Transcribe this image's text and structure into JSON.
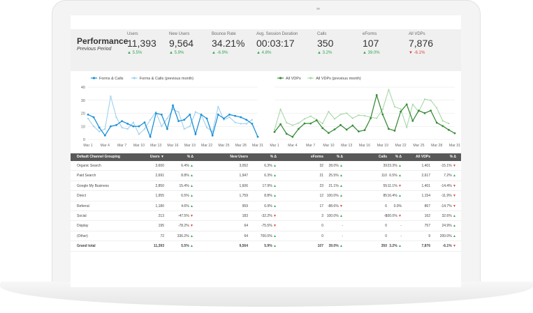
{
  "kpis": {
    "title": "Performance",
    "subtitle": "Previous Period",
    "items": [
      {
        "label": "Users",
        "value": "11,393",
        "delta": "5.5%",
        "dir": "up"
      },
      {
        "label": "New Users",
        "value": "9,564",
        "delta": "5.9%",
        "dir": "up"
      },
      {
        "label": "Bounce Rate",
        "value": "34.21%",
        "delta": "-6.9%",
        "dir": "up"
      },
      {
        "label": "Avg. Session Duration",
        "value": "00:03:17",
        "delta": "4.8%",
        "dir": "up"
      },
      {
        "label": "Calls",
        "value": "350",
        "delta": "3.2%",
        "dir": "up"
      },
      {
        "label": "eForms",
        "value": "107",
        "delta": "39.0%",
        "dir": "up"
      },
      {
        "label": "All VDPs",
        "value": "7,876",
        "delta": "-6.1%",
        "dir": "down"
      }
    ]
  },
  "chart_data": [
    {
      "type": "line",
      "legend_position": "top-left",
      "grid": true,
      "ylim": [
        0,
        40
      ],
      "yticks": [
        "0",
        "10",
        "20",
        "30",
        "40"
      ],
      "x_tick_labels": [
        "Mar 1",
        "Mar 4",
        "Mar 7",
        "Mar 10",
        "Mar 13",
        "Mar 16",
        "Mar 19",
        "Mar 22",
        "Mar 25",
        "Mar 28",
        "Mar 31"
      ],
      "series": [
        {
          "name": "Forms & Calls",
          "color": "#1a8fd6",
          "values": [
            19,
            17,
            9,
            3,
            10,
            11,
            14,
            12,
            10,
            10,
            13,
            2,
            20,
            19,
            8,
            26,
            14,
            15,
            19,
            4,
            19,
            16,
            3,
            19,
            16,
            19,
            18,
            17,
            15,
            12,
            2
          ]
        },
        {
          "name": "Forms & Calls (previous month)",
          "color": "#9fd0f0",
          "values": [
            16,
            10,
            6,
            8,
            33,
            17,
            9,
            8,
            13,
            4,
            8,
            15,
            21,
            10,
            16,
            23,
            21,
            8,
            10,
            21,
            19,
            9,
            6,
            25,
            15,
            17,
            13,
            12,
            12,
            15
          ]
        }
      ]
    },
    {
      "type": "line",
      "legend_position": "top-left",
      "grid": true,
      "x_tick_labels": [
        "Mar 1",
        "Mar 4",
        "Mar 7",
        "Mar 10",
        "Mar 13",
        "Mar 16",
        "Mar 19",
        "Mar 22",
        "Mar 25",
        "Mar 28",
        "Mar 31"
      ],
      "series": [
        {
          "name": "All VDPs",
          "color": "#3b8c3b",
          "values": [
            217,
            247,
            210,
            198,
            229,
            250,
            250,
            262,
            232,
            213,
            227,
            244,
            226,
            242,
            219,
            224,
            270,
            360,
            285,
            229,
            222,
            296,
            324,
            260,
            300,
            290,
            300,
            253,
            240,
            225,
            212
          ]
        },
        {
          "name": "All VDPs (previous month)",
          "color": "#a8d8a8",
          "values": [
            225,
            305,
            253,
            243,
            251,
            268,
            278,
            265,
            250,
            296,
            268,
            285,
            290,
            270,
            282,
            280,
            274,
            270,
            305,
            381,
            315,
            306,
            235,
            324,
            296,
            344,
            340,
            310,
            260,
            250
          ]
        }
      ]
    }
  ],
  "table": {
    "headers": [
      "Default Channel Grouping",
      "Users ▼",
      "% Δ",
      "New Users",
      "% Δ",
      "eForms",
      "% Δ",
      "Calls",
      "% Δ",
      "All VDPs",
      "% Δ"
    ],
    "rows": [
      {
        "cells": [
          "Organic Search",
          "3,600",
          "6.4%",
          "3,052",
          "6.3%",
          "32",
          "28.0%",
          "39",
          "23.3%",
          "1,401",
          "-15.1%"
        ],
        "dirs": [
          "",
          "",
          "up",
          "",
          "up",
          "",
          "up",
          "",
          "up",
          "",
          "down"
        ]
      },
      {
        "cells": [
          "Paid Search",
          "2,691",
          "8.8%",
          "1,947",
          "6.3%",
          "21",
          "25.5%",
          "110",
          "6.5%",
          "2,617",
          "7.2%"
        ],
        "dirs": [
          "",
          "",
          "up",
          "",
          "up",
          "",
          "up",
          "",
          "up",
          "",
          "up"
        ]
      },
      {
        "cells": [
          "Google My Business",
          "2,850",
          "15.4%",
          "1,606",
          "17.9%",
          "23",
          "21.1%",
          "55",
          "-11.1%",
          "1,401",
          "-14.4%"
        ],
        "dirs": [
          "",
          "",
          "up",
          "",
          "up",
          "",
          "up",
          "",
          "down",
          "",
          "down"
        ]
      },
      {
        "cells": [
          "Direct",
          "1,955",
          "6.5%",
          "1,759",
          "8.8%",
          "12",
          "100.0%",
          "85",
          "16.4%",
          "1,154",
          "-11.9%"
        ],
        "dirs": [
          "",
          "",
          "up",
          "",
          "up",
          "",
          "up",
          "",
          "up",
          "",
          "down"
        ]
      },
      {
        "cells": [
          "Referral",
          "1,180",
          "4.6%",
          "959",
          "6.9%",
          "17",
          "-88.6%",
          "6",
          "0.0%",
          "867",
          "-14.7%"
        ],
        "dirs": [
          "",
          "",
          "up",
          "",
          "up",
          "",
          "down",
          "",
          "",
          "",
          "down"
        ]
      },
      {
        "cells": [
          "Social",
          "213",
          "-47.5%",
          "183",
          "-32.2%",
          "3",
          "100.0%",
          "0",
          "-100.0%",
          "162",
          "32.6%"
        ],
        "dirs": [
          "",
          "",
          "down",
          "",
          "down",
          "",
          "up",
          "",
          "down",
          "",
          "up"
        ]
      },
      {
        "cells": [
          "Display",
          "195",
          "-78.2%",
          "64",
          "-75.5%",
          "0",
          "-",
          "0",
          "-",
          "757",
          "24.9%"
        ],
        "dirs": [
          "",
          "",
          "down",
          "",
          "down",
          "",
          "",
          "",
          "",
          "",
          "up"
        ]
      },
      {
        "cells": [
          "(Other)",
          "72",
          "336.2%",
          "64",
          "700.0%",
          "0",
          "-",
          "0",
          "-",
          "9",
          "200.0%"
        ],
        "dirs": [
          "",
          "",
          "up",
          "",
          "up",
          "",
          "",
          "",
          "",
          "",
          "up"
        ]
      }
    ],
    "total": {
      "cells": [
        "Grand total",
        "11,393",
        "5.5%",
        "9,564",
        "5.9%",
        "107",
        "39.0%",
        "350",
        "3.2%",
        "7,876",
        "-6.1%"
      ],
      "dirs": [
        "",
        "",
        "up",
        "",
        "up",
        "",
        "up",
        "",
        "up",
        "",
        "down"
      ]
    }
  }
}
